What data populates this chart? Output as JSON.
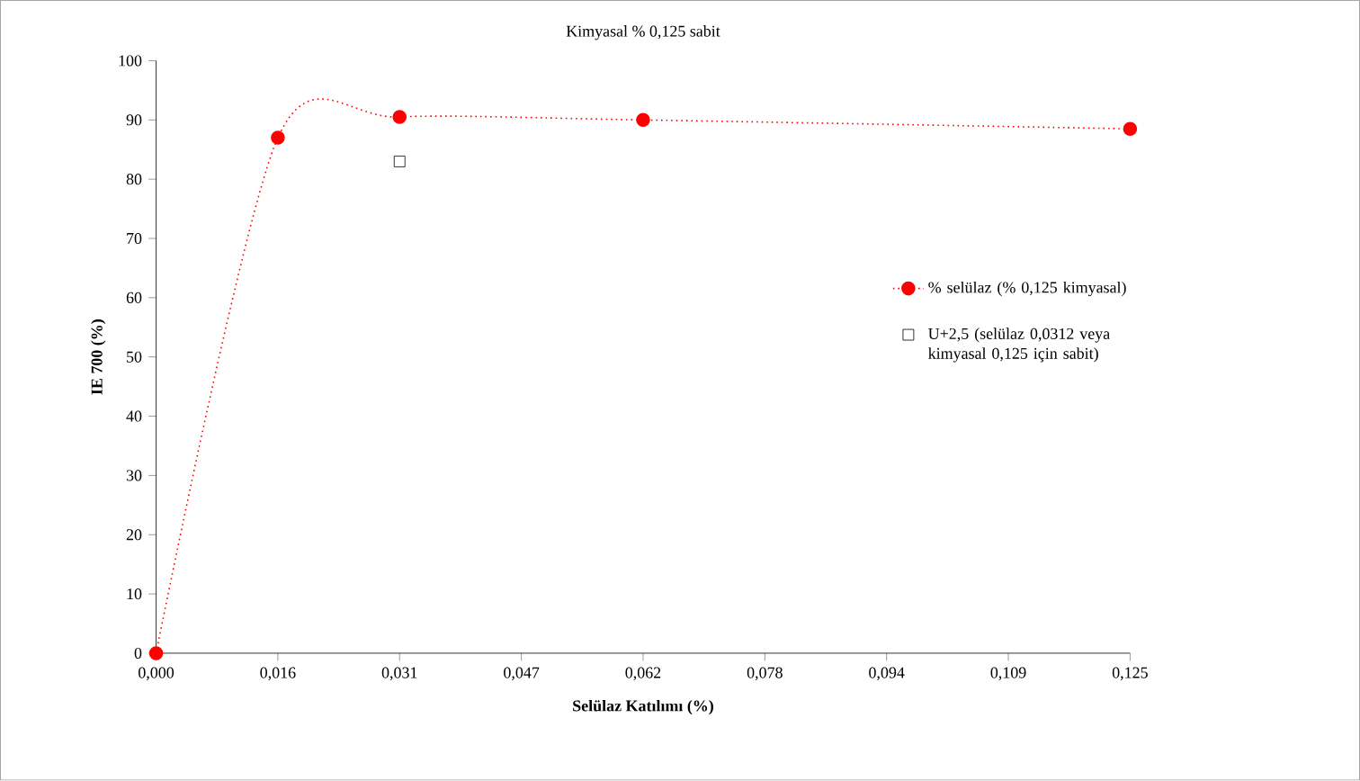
{
  "chart_data": {
    "type": "line",
    "title": "Kimyasal % 0,125 sabit",
    "xlabel": "Selülaz Katılımı (%)",
    "ylabel": "IE 700 (%)",
    "xlim": [
      0,
      0.125
    ],
    "ylim": [
      0,
      100
    ],
    "xticks": [
      {
        "value": 0,
        "label": "0,000"
      },
      {
        "value": 0.015625,
        "label": "0,016"
      },
      {
        "value": 0.03125,
        "label": "0,031"
      },
      {
        "value": 0.046875,
        "label": "0,047"
      },
      {
        "value": 0.0625,
        "label": "0,062"
      },
      {
        "value": 0.078125,
        "label": "0,078"
      },
      {
        "value": 0.09375,
        "label": "0,094"
      },
      {
        "value": 0.109375,
        "label": "0,109"
      },
      {
        "value": 0.125,
        "label": "0,125"
      }
    ],
    "yticks": [
      0,
      10,
      20,
      30,
      40,
      50,
      60,
      70,
      80,
      90,
      100
    ],
    "grid": false,
    "legend": "right",
    "series": [
      {
        "name": "% selülaz (% 0,125 kimyasal)",
        "color": "#ff0000",
        "marker": "circle",
        "line_style": "dotted",
        "x": [
          0,
          0.015625,
          0.03125,
          0.0625,
          0.125
        ],
        "values": [
          0,
          87,
          90.5,
          90,
          88.5
        ]
      },
      {
        "name": "U+2,5 (selülaz 0,0312 veya kimyasal 0,125 için sabit)",
        "type": "scatter",
        "color": "#000000",
        "marker": "square",
        "x": [
          0.03125
        ],
        "values": [
          83
        ]
      }
    ]
  }
}
